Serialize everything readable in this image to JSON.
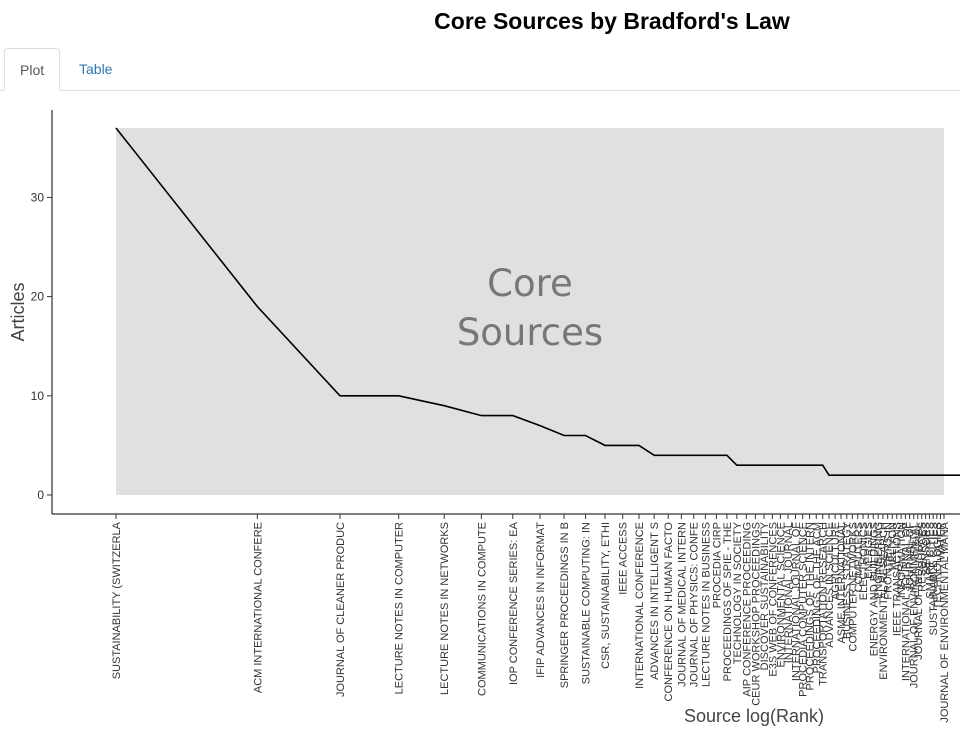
{
  "title": "Core Sources by Bradford's Law",
  "tabs": [
    {
      "label": "Plot",
      "active": true
    },
    {
      "label": "Table",
      "active": false
    }
  ],
  "chart_data": {
    "type": "line",
    "xlabel": "Source log(Rank)",
    "ylabel": "Articles",
    "x_scale": "log",
    "ylim": [
      -2,
      39
    ],
    "yticks": [
      0,
      10,
      20,
      30
    ],
    "annotation": [
      "Core",
      "Sources"
    ],
    "shaded_region": {
      "y_from": 0,
      "y_to": 37,
      "label": "Core Sources"
    },
    "line_color": "#000000",
    "shade_color": "#e0e0e0",
    "sources": [
      {
        "label": "SUSTAINABILITY (SWITZERLA",
        "value": 37
      },
      {
        "label": "ACM INTERNATIONAL CONFERE",
        "value": 19
      },
      {
        "label": "JOURNAL OF CLEANER PRODUC",
        "value": 10
      },
      {
        "label": "LECTURE NOTES IN COMPUTER",
        "value": 10
      },
      {
        "label": "LECTURE NOTES IN NETWORKS",
        "value": 9
      },
      {
        "label": "COMMUNICATIONS IN COMPUTE",
        "value": 8
      },
      {
        "label": "IOP CONFERENCE SERIES: EA",
        "value": 8
      },
      {
        "label": "IFIP ADVANCES IN INFORMAT",
        "value": 7
      },
      {
        "label": "SPRINGER PROCEEDINGS IN B",
        "value": 6
      },
      {
        "label": "SUSTAINABLE COMPUTING: IN",
        "value": 6
      },
      {
        "label": "CSR, SUSTAINABILITY, ETHI",
        "value": 5
      },
      {
        "label": "IEEE ACCESS",
        "value": 5
      },
      {
        "label": "INTERNATIONAL CONFERENCE",
        "value": 5
      },
      {
        "label": "ADVANCES IN INTELLIGENT S",
        "value": 4
      },
      {
        "label": "CONFERENCE ON HUMAN FACTO",
        "value": 4
      },
      {
        "label": "JOURNAL OF MEDICAL INTERN",
        "value": 4
      },
      {
        "label": "JOURNAL OF PHYSICS: CONFE",
        "value": 4
      },
      {
        "label": "LECTURE NOTES IN BUSINESS",
        "value": 4
      },
      {
        "label": "PROCEDIA CIRP",
        "value": 4
      },
      {
        "label": "PROCEEDINGS OF SPIE - THE",
        "value": 4
      },
      {
        "label": "TECHNOLOGY IN SOCIETY",
        "value": 3
      },
      {
        "label": "AIP CONFERENCE PROCEEDING",
        "value": 3
      },
      {
        "label": "CEUR WORKSHOP PROCEEDINGS",
        "value": 3
      },
      {
        "label": "DISCOVER SUSTAINABILITY",
        "value": 3
      },
      {
        "label": "E3S WEB OF CONFERENCES",
        "value": 3
      },
      {
        "label": "ENVIRONMENTAL SCIENCE",
        "value": 3
      },
      {
        "label": "INTERNATIONAL JOURNAL",
        "value": 3
      },
      {
        "label": "INTERNATIONAL JOURNAL OF",
        "value": 3
      },
      {
        "label": "PROCEDIA COMPUTER SCIENCE",
        "value": 3
      },
      {
        "label": "PROCEEDINGS OF THE INTERN",
        "value": 3
      },
      {
        "label": "PROCEEDINGS OF THE ACM",
        "value": 3
      },
      {
        "label": "TRANSPORTATION RESEARCH",
        "value": 3
      },
      {
        "label": "ADVANCES IN SCIENCE",
        "value": 2
      },
      {
        "label": "AGRICULTURE",
        "value": 2
      },
      {
        "label": "ASME INTERNATIONAL",
        "value": 2
      },
      {
        "label": "BUSINESS STRATEGY",
        "value": 2
      },
      {
        "label": "COMPUTER NETWORKS",
        "value": 2
      },
      {
        "label": "COMPUTERS",
        "value": 2
      },
      {
        "label": "ELECTRONICS",
        "value": 2
      },
      {
        "label": "ENERGIES",
        "value": 2
      },
      {
        "label": "ENERGY AND BUILDINGS",
        "value": 2
      },
      {
        "label": "ENGINEERING",
        "value": 2
      },
      {
        "label": "ENVIRONMENTAL RESEARCH",
        "value": 2
      },
      {
        "label": "FRONTIERS IN",
        "value": 2
      },
      {
        "label": "HELIYON",
        "value": 2
      },
      {
        "label": "IEEE TRANSACTIONS",
        "value": 2
      },
      {
        "label": "INFORMATION",
        "value": 2
      },
      {
        "label": "INTERNATIONAL JOURNAL OF",
        "value": 2
      },
      {
        "label": "JOURNAL OF",
        "value": 2
      },
      {
        "label": "JOURNAL OF ENVIRONMENTAL",
        "value": 2
      },
      {
        "label": "JOURNAL OF INDUSTRIAL",
        "value": 2
      },
      {
        "label": "RESOURCES",
        "value": 2
      },
      {
        "label": "SENSORS",
        "value": 2
      },
      {
        "label": "SMART CITIES",
        "value": 2
      },
      {
        "label": "SUSTAINABLE CITIES",
        "value": 2
      },
      {
        "label": "TECHNOLOGIES",
        "value": 2
      },
      {
        "label": "WATER",
        "value": 2
      },
      {
        "label": "JOURNAL OF ENVIRONMENTAL MANA",
        "value": 2
      }
    ]
  }
}
